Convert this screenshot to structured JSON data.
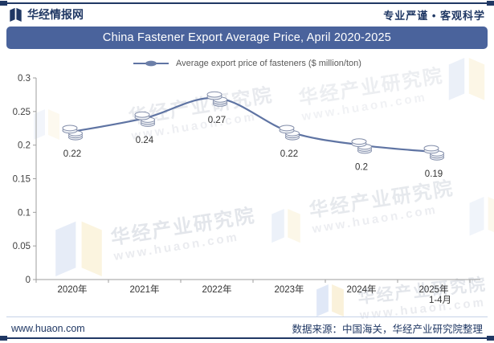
{
  "header": {
    "brand": "华经情报网",
    "slogan": "专业严谨 • 客观科学"
  },
  "title_bar": {
    "title": "China Fastener Export Average Price, April 2020-2025"
  },
  "legend": {
    "label": "Average export price of fasteners ($ million/ton)"
  },
  "chart_data": {
    "type": "line",
    "title": "China Fastener Export Average Price, April 2020-2025",
    "series_name": "Average export price of fasteners ($ million/ton)",
    "categories": [
      "2020年",
      "2021年",
      "2022年",
      "2023年",
      "2024年",
      "2025年\n1-4月"
    ],
    "values": [
      0.22,
      0.24,
      0.27,
      0.22,
      0.2,
      0.19
    ],
    "point_labels": [
      "0.22",
      "0.24",
      "0.27",
      "0.22",
      "0.2",
      "0.19"
    ],
    "xlabel": "",
    "ylabel": "",
    "ylim": [
      0,
      0.3
    ],
    "yticks": [
      0,
      0.05,
      0.1,
      0.15,
      0.2,
      0.25,
      0.3
    ],
    "ytick_labels": [
      "0",
      "0.05",
      "0.1",
      "0.15",
      "0.2",
      "0.25",
      "0.3"
    ],
    "grid": false,
    "legend_position": "top-center",
    "line_color": "#5f74a3",
    "marker": "coin-stack"
  },
  "watermarks": {
    "line1": "华经产业研究院",
    "line2": "www.huaon.com"
  },
  "footer": {
    "site": "www.huaon.com",
    "source": "数据来源：中国海关，华经产业研究院整理"
  }
}
